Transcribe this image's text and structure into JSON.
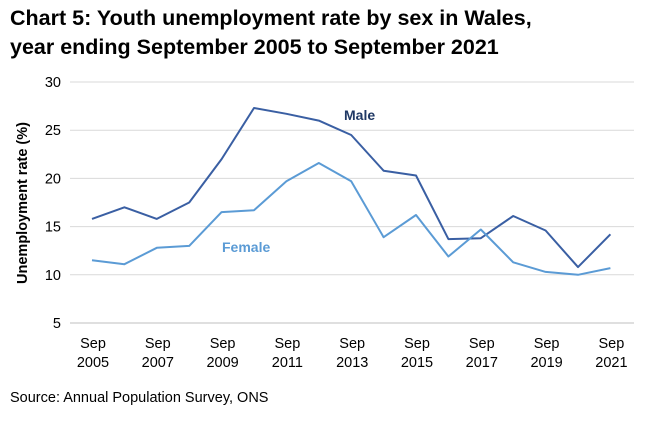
{
  "title_line1": "Chart 5: Youth unemployment rate by sex in Wales,",
  "title_line2": "year ending September 2005 to September 2021",
  "source": "Source: Annual Population Survey, ONS",
  "chart_data": {
    "type": "line",
    "ylabel": "Unemployment rate (%)",
    "ylim": [
      5,
      30
    ],
    "yticks": [
      5,
      10,
      15,
      20,
      25,
      30
    ],
    "grid": true,
    "x": [
      "2005",
      "2006",
      "2007",
      "2008",
      "2009",
      "2010",
      "2011",
      "2012",
      "2013",
      "2014",
      "2015",
      "2016",
      "2017",
      "2018",
      "2019",
      "2020",
      "2021"
    ],
    "xtick_labels": [
      {
        "line1": "Sep",
        "line2": "2005"
      },
      {
        "line1": "Sep",
        "line2": "2007"
      },
      {
        "line1": "Sep",
        "line2": "2009"
      },
      {
        "line1": "Sep",
        "line2": "2011"
      },
      {
        "line1": "Sep",
        "line2": "2013"
      },
      {
        "line1": "Sep",
        "line2": "2015"
      },
      {
        "line1": "Sep",
        "line2": "2017"
      },
      {
        "line1": "Sep",
        "line2": "2019"
      },
      {
        "line1": "Sep",
        "line2": "2021"
      }
    ],
    "series": [
      {
        "name": "Male",
        "color": "#3a5fa3",
        "values": [
          15.8,
          17.0,
          15.8,
          17.5,
          22.0,
          27.3,
          26.7,
          26.0,
          24.5,
          20.8,
          20.3,
          13.7,
          13.8,
          16.1,
          14.6,
          10.8,
          14.2
        ]
      },
      {
        "name": "Female",
        "color": "#5b9bd5",
        "values": [
          11.5,
          11.1,
          12.8,
          13.0,
          16.5,
          16.7,
          19.7,
          21.6,
          19.7,
          13.9,
          16.2,
          11.9,
          14.7,
          11.3,
          10.3,
          10.0,
          10.7
        ]
      }
    ]
  }
}
